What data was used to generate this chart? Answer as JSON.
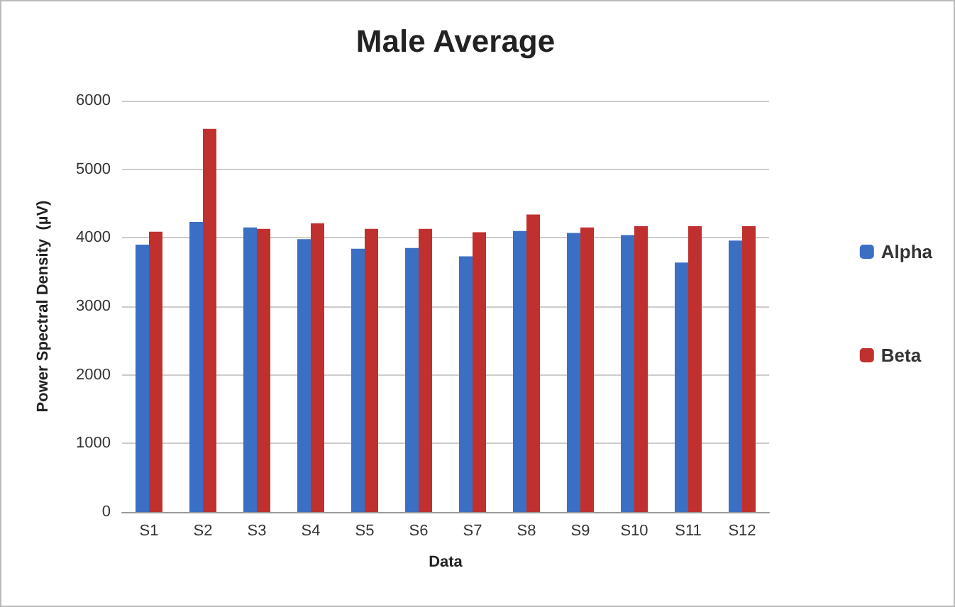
{
  "chart_data": {
    "type": "bar",
    "title": "Male Average",
    "xlabel": "Data",
    "ylabel": "Power Spectral Density  (µV)",
    "categories": [
      "S1",
      "S2",
      "S3",
      "S4",
      "S5",
      "S6",
      "S7",
      "S8",
      "S9",
      "S10",
      "S11",
      "S12"
    ],
    "series": [
      {
        "name": "Alpha",
        "color": "#3a6fc4",
        "values": [
          3900,
          4230,
          4150,
          3980,
          3840,
          3850,
          3730,
          4100,
          4070,
          4040,
          3640,
          3960
        ]
      },
      {
        "name": "Beta",
        "color": "#c0302e",
        "values": [
          4090,
          5590,
          4130,
          4210,
          4130,
          4130,
          4080,
          4340,
          4150,
          4170,
          4170,
          4170
        ]
      }
    ],
    "ylim": [
      0,
      6000
    ],
    "yticks": [
      0,
      1000,
      2000,
      3000,
      4000,
      5000,
      6000
    ],
    "grid": "y",
    "legend": "right"
  }
}
